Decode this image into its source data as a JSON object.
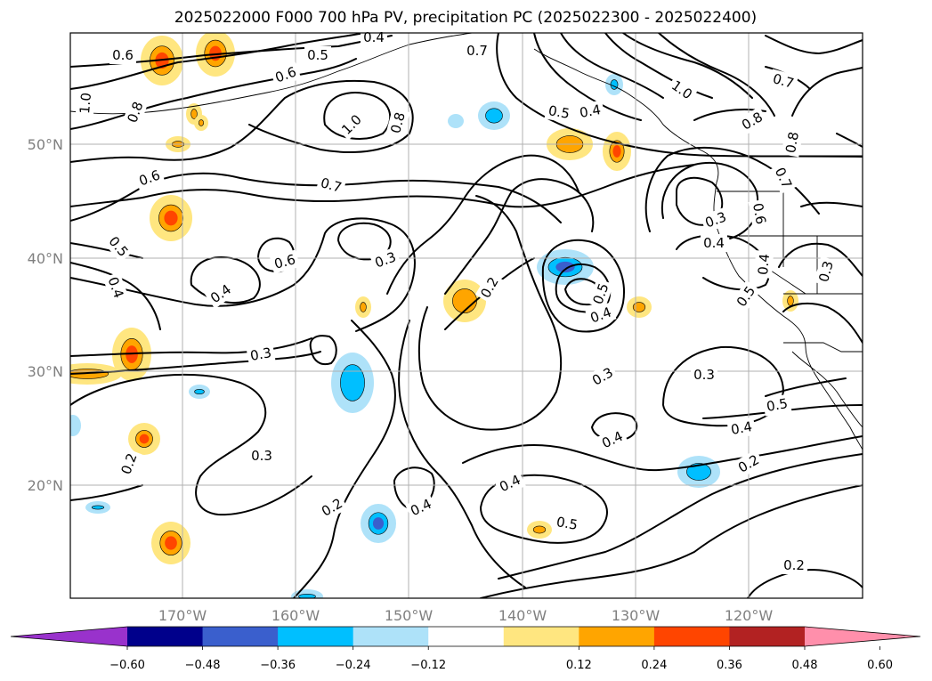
{
  "title": "2025022000 F000 700 hPa PV, precipitation PC (2025022300 - 2025022400)",
  "map": {
    "lon_ticks": [
      "170°W",
      "160°W",
      "150°W",
      "140°W",
      "130°W",
      "120°W"
    ],
    "lat_ticks": [
      "50°N",
      "40°N",
      "30°N",
      "20°N"
    ],
    "tick_color": "#808080",
    "gridlines": true,
    "coastline_color": "#000000"
  },
  "contours": {
    "variable": "700 hPa PV",
    "labels": [
      {
        "text": "0.6",
        "deg": 0
      },
      {
        "text": "0.5",
        "deg": 0
      },
      {
        "text": "0.6",
        "deg": -20
      },
      {
        "text": "0.4",
        "deg": 0
      },
      {
        "text": "0.7",
        "deg": 0
      },
      {
        "text": "1.0",
        "deg": -85
      },
      {
        "text": "0.8",
        "deg": -70
      },
      {
        "text": "1.0",
        "deg": -45
      },
      {
        "text": "0.8",
        "deg": -75
      },
      {
        "text": "0.5",
        "deg": 10
      },
      {
        "text": "0.4",
        "deg": -10
      },
      {
        "text": "1.0",
        "deg": 35
      },
      {
        "text": "0.7",
        "deg": 15
      },
      {
        "text": "0.8",
        "deg": -30
      },
      {
        "text": "0.8",
        "deg": -80
      },
      {
        "text": "0.7",
        "deg": 65
      },
      {
        "text": "0.6",
        "deg": -20
      },
      {
        "text": "0.7",
        "deg": 15
      },
      {
        "text": "0.3",
        "deg": -20
      },
      {
        "text": "0.4",
        "deg": 0
      },
      {
        "text": "0.6",
        "deg": 80
      },
      {
        "text": "0.5",
        "deg": 50
      },
      {
        "text": "0.4",
        "deg": 70
      },
      {
        "text": "0.6",
        "deg": -15
      },
      {
        "text": "0.3",
        "deg": -20
      },
      {
        "text": "0.4",
        "deg": -35
      },
      {
        "text": "0.2",
        "deg": -60
      },
      {
        "text": "0.5",
        "deg": -70
      },
      {
        "text": "0.4",
        "deg": -20
      },
      {
        "text": "0.5",
        "deg": -55
      },
      {
        "text": "0.4",
        "deg": -85
      },
      {
        "text": "0.3",
        "deg": -75
      },
      {
        "text": "0.3",
        "deg": -10
      },
      {
        "text": "0.3",
        "deg": -30
      },
      {
        "text": "0.3",
        "deg": 0
      },
      {
        "text": "0.5",
        "deg": -10
      },
      {
        "text": "0.4",
        "deg": -10
      },
      {
        "text": "0.4",
        "deg": -25
      },
      {
        "text": "0.2",
        "deg": -70
      },
      {
        "text": "0.3",
        "deg": 0
      },
      {
        "text": "0.2",
        "deg": -30
      },
      {
        "text": "0.4",
        "deg": -25
      },
      {
        "text": "0.4",
        "deg": -25
      },
      {
        "text": "0.5",
        "deg": 10
      },
      {
        "text": "0.2",
        "deg": -30
      },
      {
        "text": "0.2",
        "deg": 0
      }
    ]
  },
  "precipitation_pc": {
    "positive_colors": [
      "#ffe680",
      "#ffa500",
      "#ff4500"
    ],
    "negative_colors": [
      "#aee2f9",
      "#00bfff",
      "#3a5fcd"
    ],
    "cells": [
      {
        "sign": "+",
        "level": 3
      },
      {
        "sign": "+",
        "level": 3
      },
      {
        "sign": "+",
        "level": 3
      },
      {
        "sign": "+",
        "level": 2
      },
      {
        "sign": "+",
        "level": 2
      },
      {
        "sign": "+",
        "level": 3
      },
      {
        "sign": "+",
        "level": 2
      },
      {
        "sign": "+",
        "level": 3
      },
      {
        "sign": "+",
        "level": 3
      },
      {
        "sign": "+",
        "level": 2
      },
      {
        "sign": "+",
        "level": 2
      },
      {
        "sign": "+",
        "level": 2
      },
      {
        "sign": "+",
        "level": 3
      },
      {
        "sign": "+",
        "level": 2
      },
      {
        "sign": "+",
        "level": 2
      },
      {
        "sign": "+",
        "level": 2
      },
      {
        "sign": "+",
        "level": 2
      },
      {
        "sign": "-",
        "level": 2
      },
      {
        "sign": "-",
        "level": 3
      },
      {
        "sign": "-",
        "level": 3
      },
      {
        "sign": "-",
        "level": 2
      },
      {
        "sign": "-",
        "level": 2
      },
      {
        "sign": "-",
        "level": 2
      },
      {
        "sign": "-",
        "level": 1
      },
      {
        "sign": "-",
        "level": 2
      },
      {
        "sign": "-",
        "level": 1
      },
      {
        "sign": "-",
        "level": 2
      },
      {
        "sign": "-",
        "level": 2
      }
    ]
  },
  "colorbar": {
    "colors": [
      "#9932cc",
      "#00008b",
      "#3a5fcd",
      "#00bfff",
      "#aee2f9",
      "#ffffff",
      "#ffe680",
      "#ffa500",
      "#ff4500",
      "#b22222",
      "#ff8fab"
    ],
    "ticks": [
      "−0.60",
      "−0.48",
      "−0.36",
      "−0.24",
      "−0.12",
      "0.12",
      "0.24",
      "0.36",
      "0.48",
      "0.60"
    ],
    "extend": "both"
  }
}
